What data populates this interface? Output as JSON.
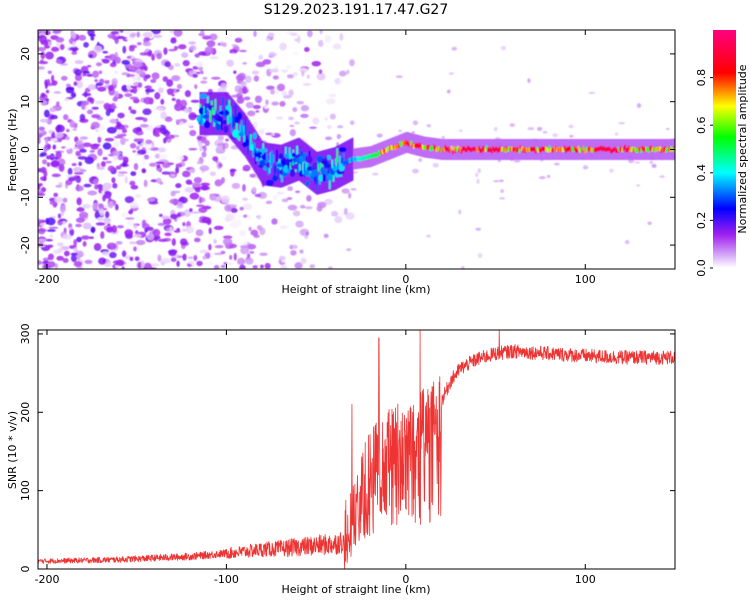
{
  "title": "S129.2023.191.17.47.G27",
  "chart_data": [
    {
      "type": "heatmap",
      "xlabel": "Height of straight line (km)",
      "ylabel": "Frequency (Hz)",
      "xlim": [
        -205,
        150
      ],
      "ylim": [
        -25,
        25
      ],
      "xticks": [
        -200,
        -100,
        0,
        100
      ],
      "yticks": [
        -20,
        -10,
        0,
        10,
        20
      ],
      "colorbar": {
        "label": "Normalized spectral amplitude",
        "range": [
          0,
          1
        ],
        "ticks": [
          0.0,
          0.2,
          0.4,
          0.6,
          0.8
        ],
        "colors": [
          "#ffffff",
          "#a020f0",
          "#0000ff",
          "#00ffff",
          "#00ff00",
          "#ffff00",
          "#ff0000",
          "#ff0080"
        ]
      },
      "trace_center_hz": [
        [
          -100,
          7.5
        ],
        [
          -90,
          3
        ],
        [
          -80,
          -3
        ],
        [
          -70,
          -3.5
        ],
        [
          -60,
          -2
        ],
        [
          -50,
          -5
        ],
        [
          -40,
          -4
        ],
        [
          -30,
          -2
        ],
        [
          -20,
          -1.5
        ],
        [
          -10,
          0
        ],
        [
          0,
          1.5
        ],
        [
          10,
          0.5
        ],
        [
          20,
          0
        ],
        [
          50,
          0
        ],
        [
          100,
          0
        ],
        [
          150,
          0
        ]
      ]
    },
    {
      "type": "line",
      "xlabel": "Height of straight line (km)",
      "ylabel": "SNR (10 * v/v)",
      "xlim": [
        -205,
        150
      ],
      "ylim": [
        0,
        305
      ],
      "xticks": [
        -200,
        -100,
        0,
        100
      ],
      "yticks": [
        0,
        100,
        200,
        300
      ],
      "color": "#ee3333",
      "envelope": {
        "x": [
          -205,
          -180,
          -160,
          -140,
          -120,
          -100,
          -90,
          -80,
          -70,
          -60,
          -50,
          -40,
          -35,
          -30,
          -25,
          -20,
          -15,
          -10,
          -5,
          0,
          5,
          10,
          15,
          20,
          25,
          30,
          35,
          40,
          50,
          60,
          80,
          100,
          120,
          150
        ],
        "y": [
          10,
          11,
          12,
          14,
          16,
          20,
          22,
          25,
          26,
          28,
          30,
          32,
          35,
          60,
          110,
          130,
          150,
          160,
          170,
          175,
          185,
          185,
          195,
          215,
          240,
          255,
          262,
          268,
          275,
          278,
          275,
          272,
          270,
          270
        ]
      },
      "spikes": [
        {
          "x": -30,
          "y": 210
        },
        {
          "x": -15,
          "y": 295
        },
        {
          "x": 8,
          "y": 305
        },
        {
          "x": 52,
          "y": 305
        }
      ]
    }
  ]
}
